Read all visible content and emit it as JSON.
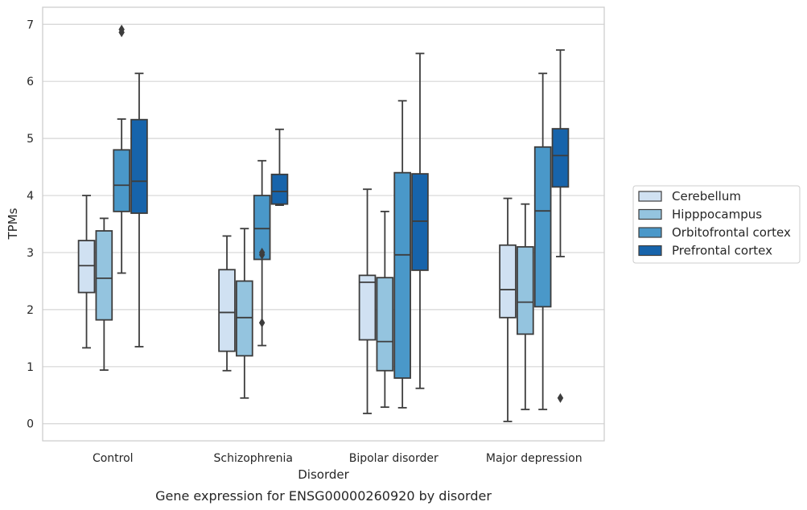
{
  "chart_data": {
    "type": "box",
    "title": "",
    "caption": "Gene expression for ENSG00000260920 by disorder",
    "xlabel": "Disorder",
    "ylabel": "TPMs",
    "ylim": [
      -0.3,
      7.3
    ],
    "yticks": [
      "0",
      "1",
      "2",
      "3",
      "4",
      "5",
      "6",
      "7"
    ],
    "grid": "horizontal",
    "legend_position": "right",
    "categories": [
      "Control",
      "Schizophrenia",
      "Bipolar disorder",
      "Major depression"
    ],
    "series": [
      {
        "name": "Cerebellum",
        "color": "#d0e1f2",
        "boxes": [
          {
            "whislo": 1.33,
            "q1": 2.3,
            "med": 2.77,
            "q3": 3.21,
            "whishi": 4.0,
            "fliers": []
          },
          {
            "whislo": 0.93,
            "q1": 1.27,
            "med": 1.95,
            "q3": 2.7,
            "whishi": 3.29,
            "fliers": []
          },
          {
            "whislo": 0.18,
            "q1": 1.47,
            "med": 2.48,
            "q3": 2.6,
            "whishi": 4.11,
            "fliers": []
          },
          {
            "whislo": 0.04,
            "q1": 1.86,
            "med": 2.35,
            "q3": 3.13,
            "whishi": 3.95,
            "fliers": []
          }
        ]
      },
      {
        "name": "Hipppocampus",
        "color": "#94c4df",
        "boxes": [
          {
            "whislo": 0.94,
            "q1": 1.82,
            "med": 2.55,
            "q3": 3.38,
            "whishi": 3.6,
            "fliers": []
          },
          {
            "whislo": 0.45,
            "q1": 1.19,
            "med": 1.86,
            "q3": 2.5,
            "whishi": 3.42,
            "fliers": []
          },
          {
            "whislo": 0.29,
            "q1": 0.93,
            "med": 1.44,
            "q3": 2.56,
            "whishi": 3.72,
            "fliers": []
          },
          {
            "whislo": 0.25,
            "q1": 1.57,
            "med": 2.13,
            "q3": 3.1,
            "whishi": 3.85,
            "fliers": []
          }
        ]
      },
      {
        "name": "Orbitofrontal cortex",
        "color": "#4a98c9",
        "boxes": [
          {
            "whislo": 2.64,
            "q1": 3.72,
            "med": 4.18,
            "q3": 4.8,
            "whishi": 5.34,
            "fliers": [
              6.86,
              6.91
            ]
          },
          {
            "whislo": 1.37,
            "q1": 2.88,
            "med": 3.42,
            "q3": 4.0,
            "whishi": 4.61,
            "fliers": [
              1.77,
              2.96,
              3.0
            ]
          },
          {
            "whislo": 0.28,
            "q1": 0.8,
            "med": 2.96,
            "q3": 4.4,
            "whishi": 5.66,
            "fliers": []
          },
          {
            "whislo": 0.25,
            "q1": 2.05,
            "med": 3.73,
            "q3": 4.85,
            "whishi": 6.14,
            "fliers": []
          }
        ]
      },
      {
        "name": "Prefrontal cortex",
        "color": "#1764ab",
        "boxes": [
          {
            "whislo": 1.35,
            "q1": 3.69,
            "med": 4.25,
            "q3": 5.33,
            "whishi": 6.14,
            "fliers": []
          },
          {
            "whislo": 3.83,
            "q1": 3.85,
            "med": 4.07,
            "q3": 4.37,
            "whishi": 5.16,
            "fliers": []
          },
          {
            "whislo": 0.62,
            "q1": 2.69,
            "med": 3.55,
            "q3": 4.38,
            "whishi": 6.49,
            "fliers": []
          },
          {
            "whislo": 2.93,
            "q1": 4.15,
            "med": 4.7,
            "q3": 5.17,
            "whishi": 6.55,
            "fliers": [
              0.45
            ]
          }
        ]
      }
    ]
  }
}
